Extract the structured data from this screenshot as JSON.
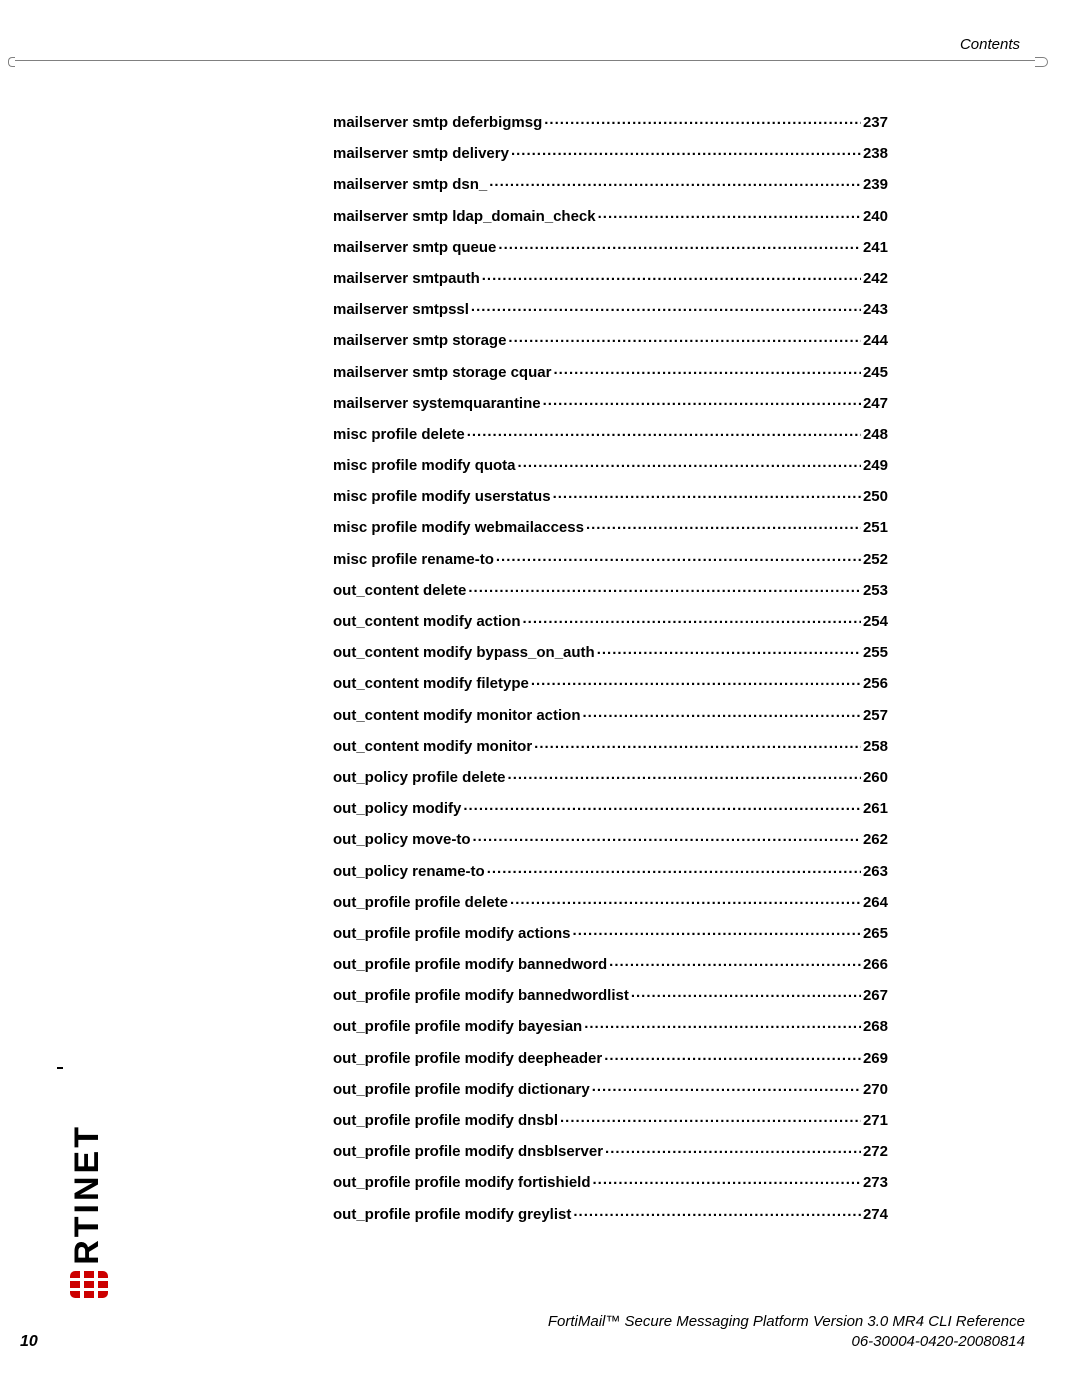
{
  "header": {
    "section_label": "Contents"
  },
  "toc": {
    "entries": [
      {
        "title": "mailserver smtp deferbigmsg",
        "page": "237"
      },
      {
        "title": "mailserver smtp delivery",
        "page": "238"
      },
      {
        "title": "mailserver smtp dsn_",
        "page": "239"
      },
      {
        "title": "mailserver smtp ldap_domain_check",
        "page": "240"
      },
      {
        "title": "mailserver smtp queue",
        "page": "241"
      },
      {
        "title": "mailserver smtpauth",
        "page": "242"
      },
      {
        "title": "mailserver smtpssl",
        "page": "243"
      },
      {
        "title": "mailserver smtp storage",
        "page": "244"
      },
      {
        "title": "mailserver smtp storage cquar",
        "page": "245"
      },
      {
        "title": "mailserver systemquarantine",
        "page": "247"
      },
      {
        "title": "misc profile delete",
        "page": "248"
      },
      {
        "title": "misc profile modify quota",
        "page": "249"
      },
      {
        "title": "misc profile modify userstatus",
        "page": "250"
      },
      {
        "title": "misc profile modify webmailaccess",
        "page": "251"
      },
      {
        "title": "misc profile rename-to",
        "page": "252"
      },
      {
        "title": "out_content delete",
        "page": "253"
      },
      {
        "title": "out_content modify action",
        "page": "254"
      },
      {
        "title": "out_content modify bypass_on_auth",
        "page": "255"
      },
      {
        "title": "out_content modify filetype",
        "page": "256"
      },
      {
        "title": "out_content modify monitor action",
        "page": "257"
      },
      {
        "title": "out_content modify monitor",
        "page": "258"
      },
      {
        "title": "out_policy profile delete",
        "page": "260"
      },
      {
        "title": "out_policy modify",
        "page": "261"
      },
      {
        "title": "out_policy move-to",
        "page": "262"
      },
      {
        "title": "out_policy rename-to",
        "page": "263"
      },
      {
        "title": "out_profile profile delete",
        "page": "264"
      },
      {
        "title": "out_profile profile modify actions",
        "page": "265"
      },
      {
        "title": "out_profile profile modify bannedword",
        "page": "266"
      },
      {
        "title": "out_profile profile modify bannedwordlist",
        "page": "267"
      },
      {
        "title": "out_profile profile modify bayesian",
        "page": "268"
      },
      {
        "title": "out_profile profile modify deepheader",
        "page": "269"
      },
      {
        "title": "out_profile profile modify dictionary",
        "page": "270"
      },
      {
        "title": "out_profile profile modify dnsbl",
        "page": "271"
      },
      {
        "title": "out_profile profile modify dnsblserver",
        "page": "272"
      },
      {
        "title": "out_profile profile modify fortishield",
        "page": "273"
      },
      {
        "title": "out_profile profile modify greylist",
        "page": "274"
      }
    ]
  },
  "footer": {
    "page_number": "10",
    "doc_title": "FortiMail™ Secure Messaging Platform Version 3.0 MR4 CLI Reference",
    "doc_id": "06-30004-0420-20080814"
  },
  "logo": {
    "brand_text": "RTINET",
    "mark_color": "#cc0000"
  },
  "style": {
    "page_bg": "#ffffff",
    "text_color": "#000000",
    "rule_color": "#808080",
    "toc_fontsize_pt": 11,
    "toc_fontweight": "bold",
    "header_fontsize_pt": 11,
    "header_fontstyle": "italic",
    "footer_fontsize_pt": 11,
    "footer_fontstyle": "italic"
  }
}
